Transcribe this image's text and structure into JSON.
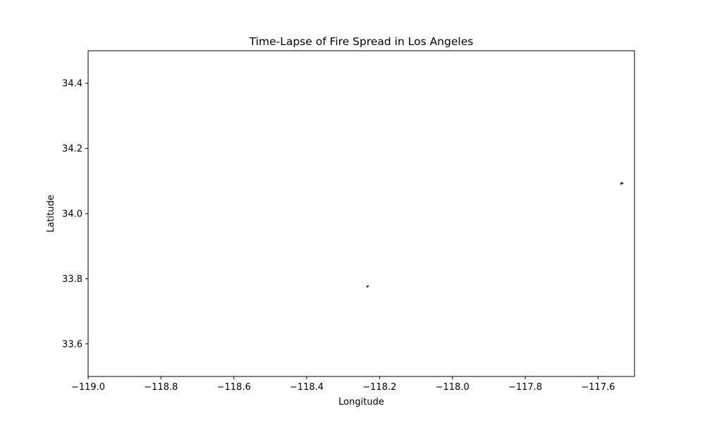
{
  "chart_data": {
    "type": "scatter",
    "title": "Time-Lapse of Fire Spread in Los Angeles",
    "xlabel": "Longitude",
    "ylabel": "Latitude",
    "xlim": [
      -119.0,
      -117.5
    ],
    "ylim": [
      33.5,
      34.5
    ],
    "x_ticks": [
      -119.0,
      -118.8,
      -118.6,
      -118.4,
      -118.2,
      -118.0,
      -117.8,
      -117.6
    ],
    "x_tick_labels": [
      "−119.0",
      "−118.8",
      "−118.6",
      "−118.4",
      "−118.2",
      "−118.0",
      "−117.8",
      "−117.6"
    ],
    "y_ticks": [
      33.6,
      33.8,
      34.0,
      34.2,
      34.4
    ],
    "y_tick_labels": [
      "33.6",
      "33.8",
      "34.0",
      "34.2",
      "34.4"
    ],
    "grid": false,
    "series": [
      {
        "color": "#333333",
        "points": [
          {
            "x": -118.234,
            "y": 33.776
          },
          {
            "x": -118.232,
            "y": 33.777
          },
          {
            "x": -117.537,
            "y": 34.092
          },
          {
            "x": -117.535,
            "y": 34.094
          },
          {
            "x": -117.533,
            "y": 34.093
          }
        ]
      }
    ]
  }
}
